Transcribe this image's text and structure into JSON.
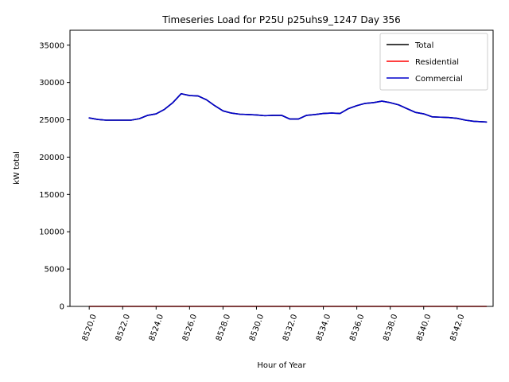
{
  "chart_data": {
    "type": "line",
    "title": "Timeseries Load for P25U p25uhs9_1247  Day 356",
    "xlabel": "Hour of Year",
    "ylabel": "kW total",
    "xlim": [
      8518.85,
      8544.15
    ],
    "ylim": [
      0,
      37000
    ],
    "x_ticks": [
      8520,
      8522,
      8524,
      8526,
      8528,
      8530,
      8532,
      8534,
      8536,
      8538,
      8540,
      8542
    ],
    "x_tick_labels": [
      "8520.0",
      "8522.0",
      "8524.0",
      "8526.0",
      "8528.0",
      "8530.0",
      "8532.0",
      "8534.0",
      "8536.0",
      "8538.0",
      "8540.0",
      "8542.0"
    ],
    "y_ticks": [
      0,
      5000,
      10000,
      15000,
      20000,
      25000,
      30000,
      35000
    ],
    "y_tick_labels": [
      "0",
      "5000",
      "10000",
      "15000",
      "20000",
      "25000",
      "30000",
      "35000"
    ],
    "legend_position": "top-right",
    "grid": false,
    "x": [
      8520.0,
      8520.5,
      8521.0,
      8521.5,
      8522.0,
      8522.5,
      8523.0,
      8523.5,
      8524.0,
      8524.5,
      8525.0,
      8525.5,
      8526.0,
      8526.5,
      8527.0,
      8527.5,
      8528.0,
      8528.5,
      8529.0,
      8529.5,
      8530.0,
      8530.5,
      8531.0,
      8531.5,
      8532.0,
      8532.5,
      8533.0,
      8533.5,
      8534.0,
      8534.5,
      8535.0,
      8535.5,
      8536.0,
      8536.5,
      8537.0,
      8537.5,
      8538.0,
      8538.5,
      8539.0,
      8539.5,
      8540.0,
      8540.5,
      8541.0,
      8541.5,
      8542.0,
      8542.5,
      8543.0,
      8543.75
    ],
    "series": [
      {
        "name": "Total",
        "color": "#000000",
        "values": [
          25250,
          25050,
          24950,
          24950,
          24950,
          24950,
          25150,
          25600,
          25800,
          26400,
          27300,
          28500,
          28250,
          28200,
          27700,
          26900,
          26200,
          25900,
          25750,
          25700,
          25650,
          25550,
          25600,
          25600,
          25100,
          25100,
          25600,
          25700,
          25850,
          25900,
          25850,
          26500,
          26900,
          27200,
          27300,
          27500,
          27300,
          27000,
          26500,
          26000,
          25800,
          25400,
          25350,
          25300,
          25200,
          24950,
          24800,
          24700
        ]
      },
      {
        "name": "Residential",
        "color": "#ff0000",
        "values": [
          0,
          0,
          0,
          0,
          0,
          0,
          0,
          0,
          0,
          0,
          0,
          0,
          0,
          0,
          0,
          0,
          0,
          0,
          0,
          0,
          0,
          0,
          0,
          0,
          0,
          0,
          0,
          0,
          0,
          0,
          0,
          0,
          0,
          0,
          0,
          0,
          0,
          0,
          0,
          0,
          0,
          0,
          0,
          0,
          0,
          0,
          0,
          0
        ]
      },
      {
        "name": "Commercial",
        "color": "#0000cc",
        "values": [
          25250,
          25050,
          24950,
          24950,
          24950,
          24950,
          25150,
          25600,
          25800,
          26400,
          27300,
          28500,
          28250,
          28200,
          27700,
          26900,
          26200,
          25900,
          25750,
          25700,
          25650,
          25550,
          25600,
          25600,
          25100,
          25100,
          25600,
          25700,
          25850,
          25900,
          25850,
          26500,
          26900,
          27200,
          27300,
          27500,
          27300,
          27000,
          26500,
          26000,
          25800,
          25400,
          25350,
          25300,
          25200,
          24950,
          24800,
          24700
        ]
      }
    ]
  }
}
